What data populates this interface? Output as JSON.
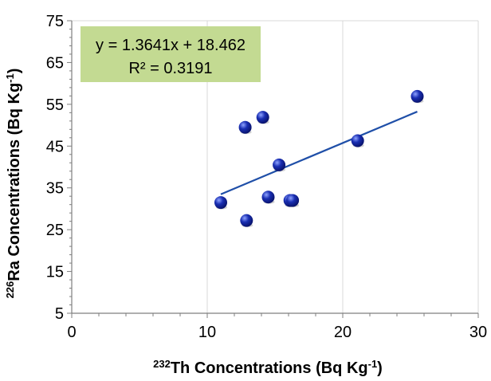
{
  "chart_data": {
    "type": "scatter",
    "x_axis": {
      "label_sup": "232",
      "label_main": "Th Concentrations (Bq Kg",
      "label_exp": "-1",
      "label_close": ")",
      "xlim": [
        0,
        30
      ],
      "ticks": [
        0,
        10,
        20,
        30
      ]
    },
    "y_axis": {
      "label_sup": "226",
      "label_main": "Ra Concentrations  (Bq Kg",
      "label_exp": "-1",
      "label_close": ")",
      "ylim": [
        5,
        75
      ],
      "ticks": [
        5,
        15,
        25,
        35,
        45,
        55,
        65,
        75
      ]
    },
    "grid": "vertical",
    "points": [
      {
        "x": 11.0,
        "y": 31.5
      },
      {
        "x": 12.8,
        "y": 49.5
      },
      {
        "x": 12.9,
        "y": 27.2
      },
      {
        "x": 14.1,
        "y": 51.9
      },
      {
        "x": 14.5,
        "y": 32.8
      },
      {
        "x": 15.3,
        "y": 40.5
      },
      {
        "x": 16.1,
        "y": 32.0
      },
      {
        "x": 16.3,
        "y": 32.0
      },
      {
        "x": 21.1,
        "y": 46.3
      },
      {
        "x": 25.5,
        "y": 56.9
      }
    ],
    "trendline": {
      "slope": 1.3641,
      "intercept": 18.462,
      "x_start": 11.0,
      "x_end": 25.5,
      "equation": "y = 1.3641x + 18.462",
      "r2_label": "R² = 0.3191"
    },
    "colors": {
      "marker": "#1a2fb3",
      "marker_dark": "#08126b",
      "marker_light": "#8fa3ff",
      "trendline": "#1f4fa8",
      "equation_box": "#c3da92",
      "grid": "#d9d9d9",
      "axis": "#7f7f7f"
    }
  }
}
